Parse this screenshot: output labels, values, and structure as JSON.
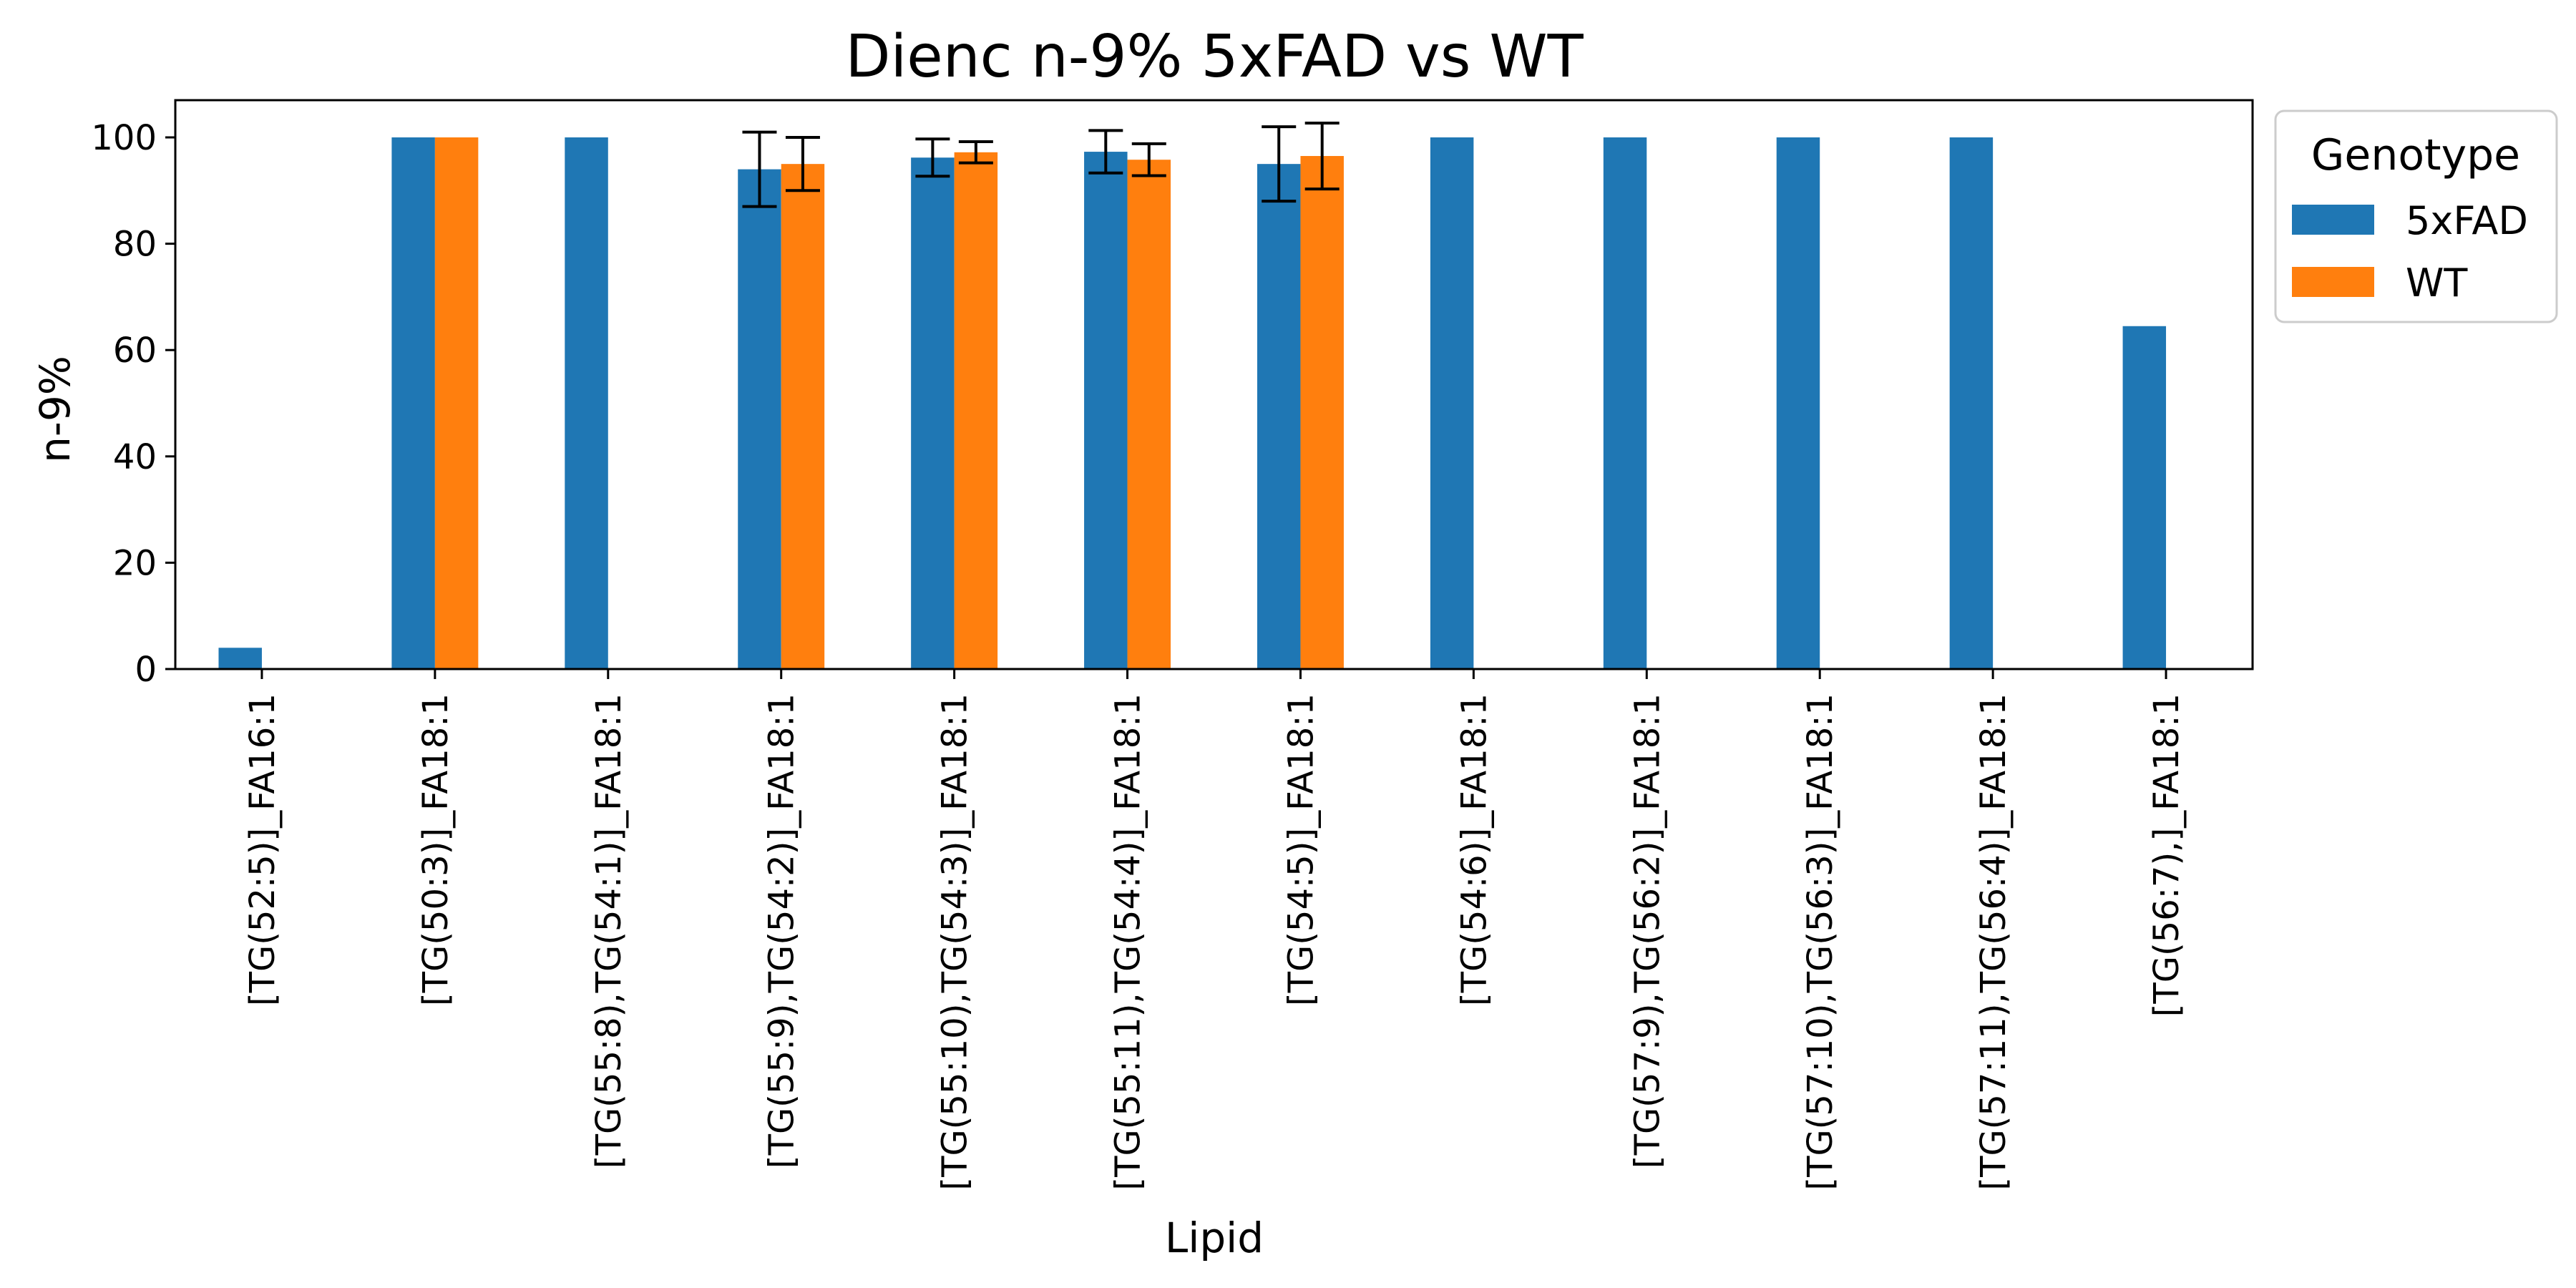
{
  "chart_data": {
    "type": "bar",
    "title": "Dienc n-9% 5xFAD vs WT",
    "xlabel": "Lipid",
    "ylabel": "n-9%",
    "ylim": [
      0,
      107
    ],
    "yticks": [
      0,
      20,
      40,
      60,
      80,
      100
    ],
    "grid": false,
    "legend": {
      "title": "Genotype",
      "placement": "outside-top-right"
    },
    "categories": [
      "[TG(52:5)]_FA16:1",
      "[TG(50:3)]_FA18:1",
      "[TG(55:8),TG(54:1)]_FA18:1",
      "[TG(55:9),TG(54:2)]_FA18:1",
      "[TG(55:10),TG(54:3)]_FA18:1",
      "[TG(55:11),TG(54:4)]_FA18:1",
      "[TG(54:5)]_FA18:1",
      "[TG(54:6)]_FA18:1",
      "[TG(57:9),TG(56:2)]_FA18:1",
      "[TG(57:10),TG(56:3)]_FA18:1",
      "[TG(57:11),TG(56:4)]_FA18:1",
      "[TG(56:7),]_FA18:1"
    ],
    "series": [
      {
        "name": "5xFAD",
        "color": "#1f77b4",
        "values": [
          4,
          100,
          100,
          94,
          96.2,
          97.3,
          95,
          100,
          100,
          100,
          100,
          64.5
        ],
        "errors": [
          null,
          null,
          null,
          7,
          3.5,
          4,
          7,
          null,
          null,
          null,
          null,
          null
        ]
      },
      {
        "name": "WT",
        "color": "#ff7f0e",
        "values": [
          null,
          100,
          null,
          95,
          97.2,
          95.8,
          96.5,
          null,
          null,
          null,
          null,
          null
        ],
        "errors": [
          null,
          null,
          null,
          5,
          2,
          3,
          6.2,
          null,
          null,
          null,
          null,
          null
        ]
      }
    ]
  }
}
